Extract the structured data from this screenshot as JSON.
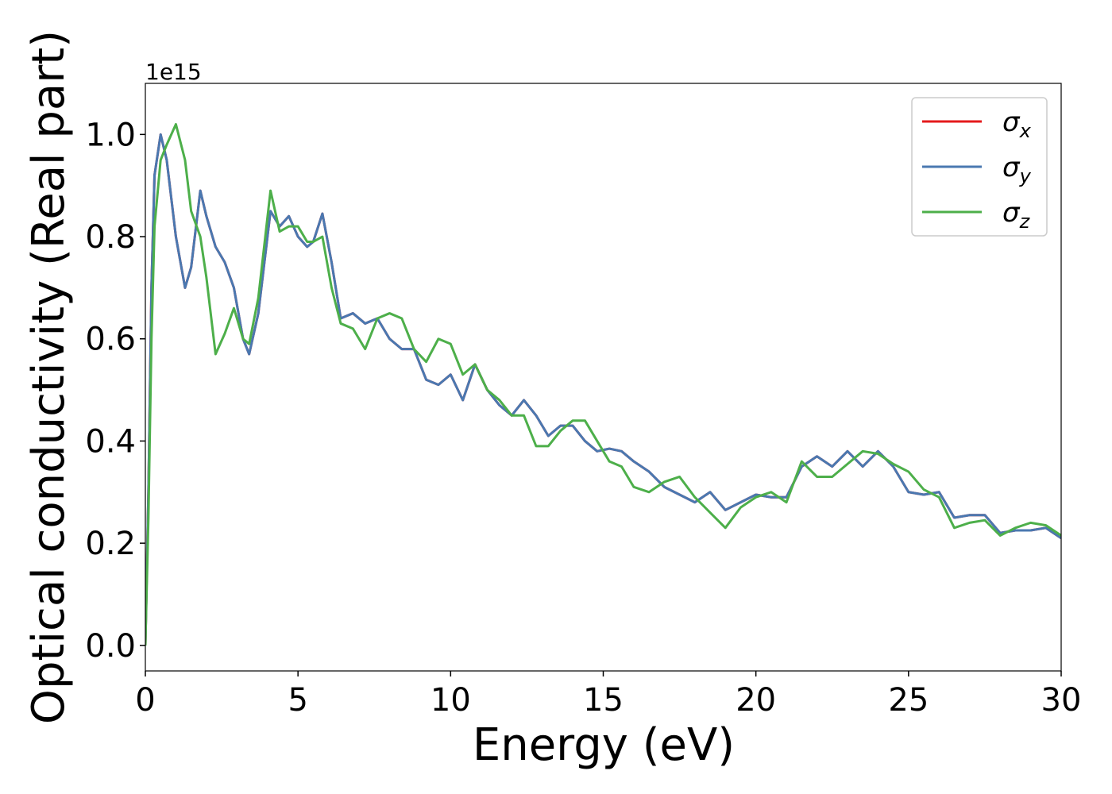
{
  "chart_data": {
    "type": "line",
    "xlabel": "Energy (eV)",
    "ylabel": "Optical conductivity (Real part)",
    "y_offset_label": "1e15",
    "x": [
      0,
      0.1,
      0.2,
      0.3,
      0.5,
      0.7,
      1.0,
      1.3,
      1.5,
      1.8,
      2.0,
      2.3,
      2.6,
      2.9,
      3.2,
      3.4,
      3.7,
      4.1,
      4.4,
      4.7,
      5.0,
      5.3,
      5.5,
      5.8,
      6.1,
      6.4,
      6.8,
      7.2,
      7.6,
      8.0,
      8.4,
      8.8,
      9.2,
      9.6,
      10.0,
      10.4,
      10.8,
      11.2,
      11.6,
      12.0,
      12.4,
      12.8,
      13.2,
      13.6,
      14.0,
      14.4,
      14.8,
      15.2,
      15.6,
      16.0,
      16.5,
      17.0,
      17.5,
      18.0,
      18.5,
      19.0,
      19.5,
      20.0,
      20.5,
      21.0,
      21.5,
      22.0,
      22.5,
      23.0,
      23.5,
      24.0,
      24.5,
      25.0,
      25.5,
      26.0,
      26.5,
      27.0,
      27.5,
      28.0,
      28.5,
      29.0,
      29.5,
      30.0
    ],
    "series": [
      {
        "name": "σx",
        "color": "#e41a1c",
        "values": [
          0.0,
          0.3,
          0.7,
          0.92,
          1.0,
          0.95,
          0.8,
          0.7,
          0.74,
          0.89,
          0.84,
          0.78,
          0.75,
          0.7,
          0.6,
          0.57,
          0.65,
          0.85,
          0.82,
          0.84,
          0.8,
          0.78,
          0.79,
          0.845,
          0.75,
          0.64,
          0.65,
          0.63,
          0.64,
          0.6,
          0.58,
          0.58,
          0.52,
          0.51,
          0.53,
          0.48,
          0.55,
          0.5,
          0.47,
          0.45,
          0.48,
          0.45,
          0.41,
          0.43,
          0.43,
          0.4,
          0.38,
          0.385,
          0.38,
          0.36,
          0.34,
          0.31,
          0.295,
          0.28,
          0.3,
          0.265,
          0.28,
          0.295,
          0.29,
          0.29,
          0.35,
          0.37,
          0.35,
          0.38,
          0.35,
          0.38,
          0.35,
          0.3,
          0.295,
          0.3,
          0.25,
          0.255,
          0.255,
          0.22,
          0.225,
          0.225,
          0.23,
          0.21
        ]
      },
      {
        "name": "σy",
        "color": "#4a78b0",
        "values": [
          0.0,
          0.3,
          0.7,
          0.92,
          1.0,
          0.95,
          0.8,
          0.7,
          0.74,
          0.89,
          0.84,
          0.78,
          0.75,
          0.7,
          0.6,
          0.57,
          0.65,
          0.85,
          0.82,
          0.84,
          0.8,
          0.78,
          0.79,
          0.845,
          0.75,
          0.64,
          0.65,
          0.63,
          0.64,
          0.6,
          0.58,
          0.58,
          0.52,
          0.51,
          0.53,
          0.48,
          0.55,
          0.5,
          0.47,
          0.45,
          0.48,
          0.45,
          0.41,
          0.43,
          0.43,
          0.4,
          0.38,
          0.385,
          0.38,
          0.36,
          0.34,
          0.31,
          0.295,
          0.28,
          0.3,
          0.265,
          0.28,
          0.295,
          0.29,
          0.29,
          0.35,
          0.37,
          0.35,
          0.38,
          0.35,
          0.38,
          0.35,
          0.3,
          0.295,
          0.3,
          0.25,
          0.255,
          0.255,
          0.22,
          0.225,
          0.225,
          0.23,
          0.21
        ]
      },
      {
        "name": "σz",
        "color": "#4daf4a",
        "values": [
          0.0,
          0.25,
          0.6,
          0.82,
          0.95,
          0.98,
          1.02,
          0.95,
          0.85,
          0.8,
          0.72,
          0.57,
          0.61,
          0.66,
          0.6,
          0.59,
          0.68,
          0.89,
          0.81,
          0.82,
          0.82,
          0.79,
          0.79,
          0.8,
          0.7,
          0.63,
          0.62,
          0.58,
          0.64,
          0.65,
          0.64,
          0.58,
          0.555,
          0.6,
          0.59,
          0.53,
          0.55,
          0.5,
          0.48,
          0.45,
          0.45,
          0.39,
          0.39,
          0.42,
          0.44,
          0.44,
          0.4,
          0.36,
          0.35,
          0.31,
          0.3,
          0.32,
          0.33,
          0.29,
          0.26,
          0.23,
          0.27,
          0.29,
          0.3,
          0.28,
          0.36,
          0.33,
          0.33,
          0.355,
          0.38,
          0.375,
          0.355,
          0.34,
          0.305,
          0.29,
          0.23,
          0.24,
          0.245,
          0.215,
          0.23,
          0.24,
          0.235,
          0.215
        ]
      }
    ],
    "xlim": [
      0,
      30
    ],
    "xticks": [
      0,
      5,
      10,
      15,
      20,
      25,
      30
    ],
    "ylim": [
      -0.05,
      1.1
    ],
    "yticks": [
      {
        "value": 0,
        "label": "0.0"
      },
      0.2,
      0.4,
      0.6,
      0.8,
      {
        "value": 1,
        "label": "1.0"
      }
    ],
    "legend": "upper right",
    "grid": false
  }
}
